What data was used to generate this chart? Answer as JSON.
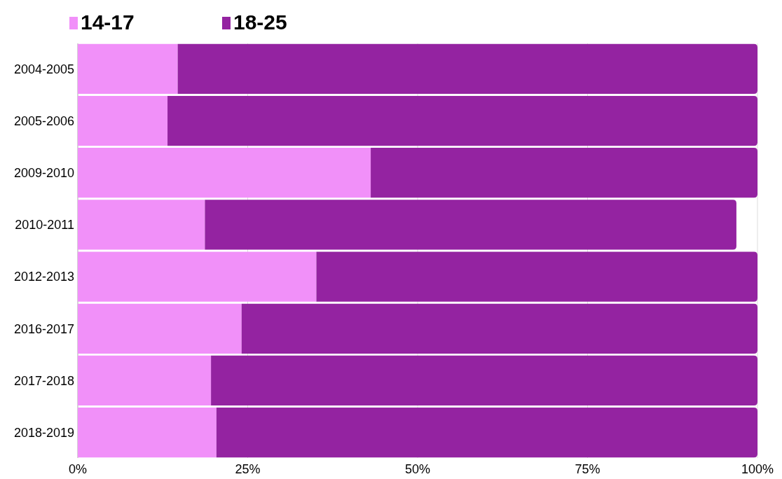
{
  "chart_data": {
    "type": "bar",
    "orientation": "horizontal",
    "stacked": true,
    "legend": "top left",
    "grid": "x",
    "categories": [
      "2004-2005",
      "2005-2006",
      "2009-2010",
      "2010-2011",
      "2012-2013",
      "2016-2017",
      "2017-2018",
      "2018-2019"
    ],
    "series": [
      {
        "name": "14-17",
        "color": "#f190f9",
        "values": [
          14.7,
          13.2,
          43.1,
          18.7,
          35.1,
          24.1,
          19.6,
          20.4
        ]
      },
      {
        "name": "18-25",
        "color": "#9423a1",
        "values": [
          85.3,
          86.8,
          56.9,
          78.2,
          64.9,
          75.9,
          80.4,
          79.6
        ]
      }
    ],
    "xlim": [
      0,
      100
    ],
    "xticks": [
      {
        "value": 0,
        "label": "0%"
      },
      {
        "value": 25,
        "label": "25%"
      },
      {
        "value": 50,
        "label": "50%"
      },
      {
        "value": 75,
        "label": "75%"
      },
      {
        "value": 100,
        "label": "100%"
      }
    ]
  }
}
